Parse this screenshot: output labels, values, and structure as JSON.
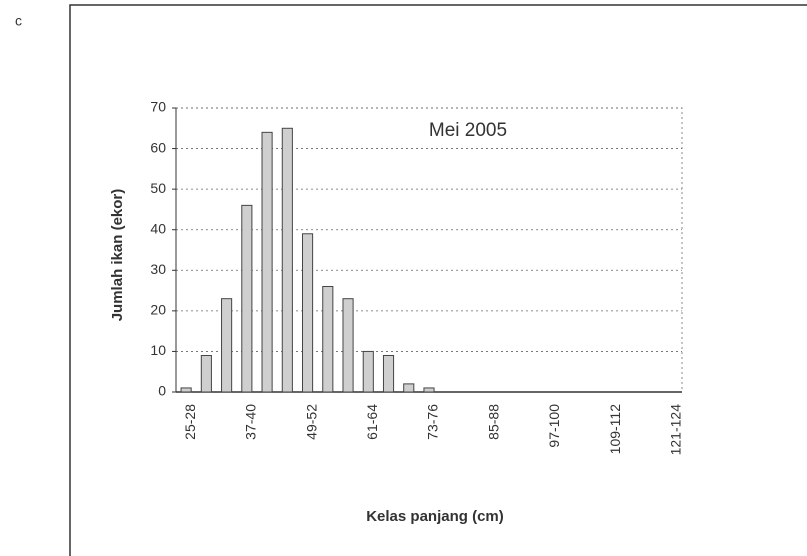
{
  "chart_data": {
    "type": "bar",
    "panel_label": "c",
    "title": "Mei 2005",
    "xlabel": "Kelas panjang (cm)",
    "ylabel": "Jumlah ikan (ekor)",
    "categories": [
      "25-28",
      null,
      null,
      "37-40",
      null,
      null,
      "49-52",
      null,
      null,
      "61-64",
      null,
      null,
      "73-76",
      null,
      null,
      "85-88",
      null,
      null,
      "97-100",
      null,
      null,
      "109-112",
      null,
      null,
      "121-124"
    ],
    "values": [
      1,
      9,
      23,
      46,
      64,
      65,
      39,
      26,
      23,
      10,
      9,
      2,
      1,
      0,
      0,
      0,
      0,
      0,
      0,
      0,
      0,
      0,
      0,
      0,
      0
    ],
    "color": "#cfcfcf",
    "ylim": [
      0,
      70
    ],
    "yticks": [
      0,
      10,
      20,
      30,
      40,
      50,
      60,
      70
    ],
    "grid": true
  }
}
